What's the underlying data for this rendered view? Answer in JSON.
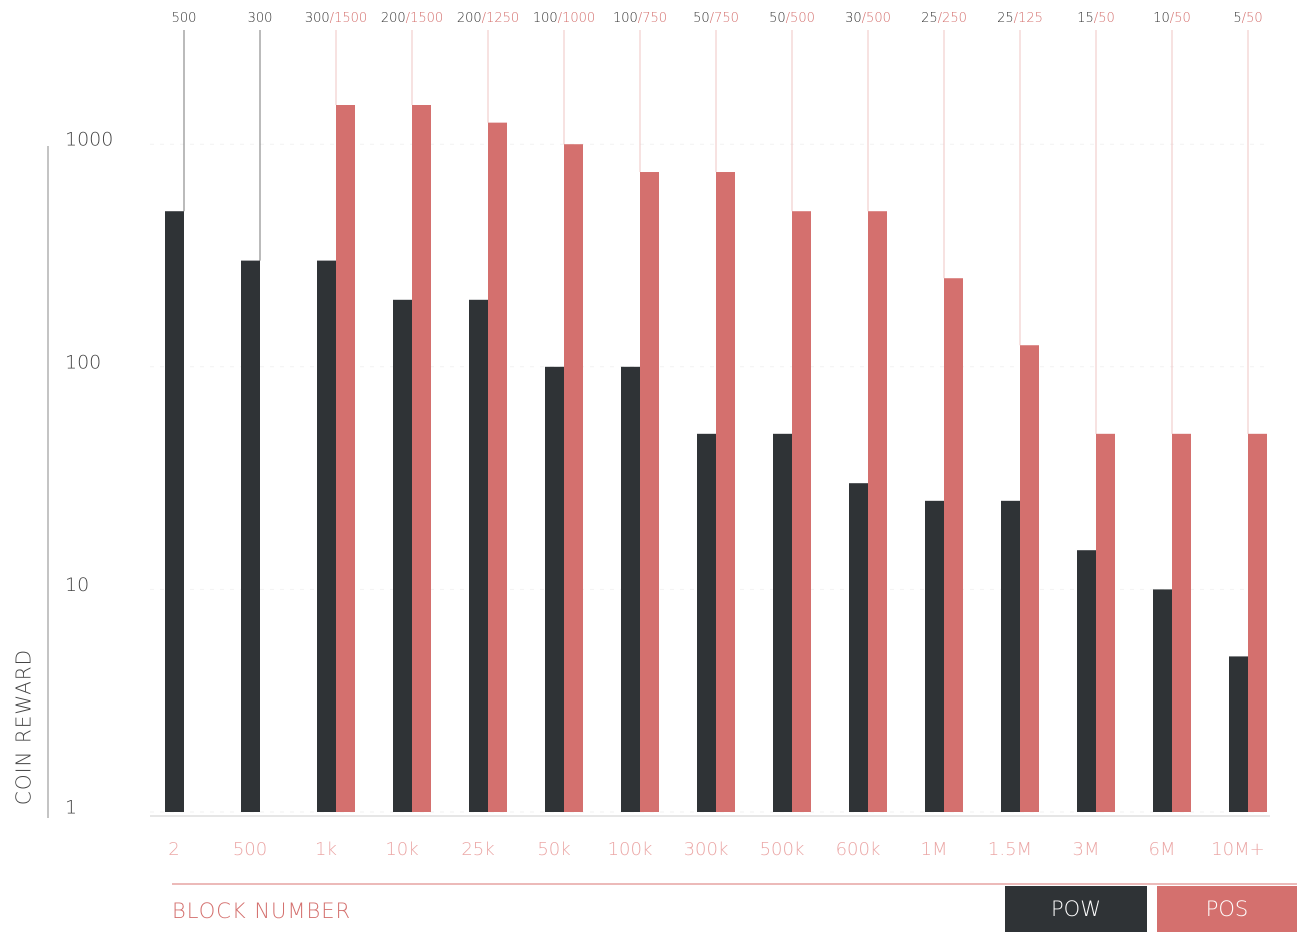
{
  "chart_data": {
    "type": "bar",
    "y_label": "COIN REWARD",
    "x_label": "BLOCK NUMBER",
    "categories": [
      "2",
      "500",
      "1k",
      "10k",
      "25k",
      "50k",
      "100k",
      "300k",
      "500k",
      "600k",
      "1M",
      "1.5M",
      "3M",
      "6M",
      "10M+"
    ],
    "series": [
      {
        "name": "POW",
        "color": "#2f3336",
        "values": [
          500,
          300,
          300,
          200,
          200,
          100,
          100,
          50,
          50,
          30,
          25,
          25,
          15,
          10,
          5
        ]
      },
      {
        "name": "POS",
        "color": "#d4706e",
        "values": [
          null,
          null,
          1500,
          1500,
          1250,
          1000,
          750,
          750,
          500,
          500,
          250,
          125,
          50,
          50,
          50
        ]
      }
    ],
    "label_separator": "/",
    "log_scale": true,
    "ylim": [
      1,
      3000
    ],
    "yticks": [
      1,
      10,
      100,
      1000
    ],
    "grid": true
  }
}
